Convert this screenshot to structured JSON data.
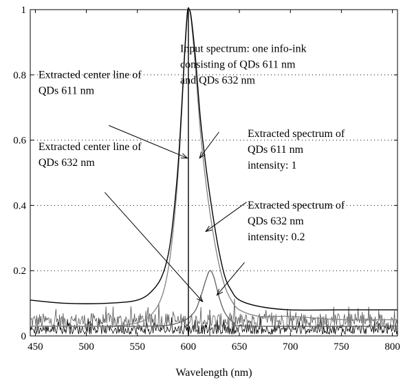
{
  "chart_data": {
    "type": "line",
    "title": "",
    "xlabel": "Wavelength (nm)",
    "ylabel": "",
    "xlim": [
      445,
      805
    ],
    "ylim": [
      0,
      1
    ],
    "grid": "dotted horizontal",
    "x_ticks": [
      {
        "value": 450,
        "label": "450"
      },
      {
        "value": 500,
        "label": "500"
      },
      {
        "value": 550,
        "label": "550"
      },
      {
        "value": 600,
        "label": "600"
      },
      {
        "value": 650,
        "label": "650"
      },
      {
        "value": 700,
        "label": "700"
      },
      {
        "value": 750,
        "label": "750"
      },
      {
        "value": 800,
        "label": "800"
      }
    ],
    "y_ticks": [
      {
        "value": 0,
        "label": "0"
      },
      {
        "value": 0.2,
        "label": "0.2"
      },
      {
        "value": 0.4,
        "label": "0.4"
      },
      {
        "value": 0.6,
        "label": "0.6"
      },
      {
        "value": 0.8,
        "label": "0.8"
      },
      {
        "value": 1,
        "label": "1"
      }
    ],
    "series": [
      {
        "color": "#000000",
        "points": [
          [
            445,
            0.11
          ],
          [
            480,
            0.1
          ],
          [
            520,
            0.1
          ],
          [
            550,
            0.11
          ],
          [
            565,
            0.14
          ],
          [
            575,
            0.19
          ],
          [
            582,
            0.28
          ],
          [
            588,
            0.45
          ],
          [
            592,
            0.62
          ],
          [
            596,
            0.85
          ],
          [
            599,
            0.99
          ],
          [
            601,
            1.0
          ],
          [
            603,
            0.97
          ],
          [
            607,
            0.85
          ],
          [
            612,
            0.66
          ],
          [
            618,
            0.5
          ],
          [
            624,
            0.37
          ],
          [
            630,
            0.26
          ],
          [
            636,
            0.18
          ],
          [
            642,
            0.14
          ],
          [
            650,
            0.11
          ],
          [
            670,
            0.09
          ],
          [
            700,
            0.08
          ],
          [
            750,
            0.08
          ],
          [
            805,
            0.08
          ]
        ]
      },
      {
        "color": "#888888",
        "points": [
          [
            445,
            0.03
          ],
          [
            480,
            0.03
          ],
          [
            520,
            0.03
          ],
          [
            550,
            0.04
          ],
          [
            565,
            0.07
          ],
          [
            575,
            0.13
          ],
          [
            582,
            0.24
          ],
          [
            588,
            0.42
          ],
          [
            592,
            0.6
          ],
          [
            596,
            0.84
          ],
          [
            599,
            0.98
          ],
          [
            601,
            1.0
          ],
          [
            603,
            0.96
          ],
          [
            607,
            0.82
          ],
          [
            612,
            0.62
          ],
          [
            618,
            0.45
          ],
          [
            624,
            0.32
          ],
          [
            630,
            0.22
          ],
          [
            636,
            0.15
          ],
          [
            642,
            0.11
          ],
          [
            650,
            0.08
          ],
          [
            670,
            0.06
          ],
          [
            700,
            0.06
          ],
          [
            750,
            0.05
          ],
          [
            805,
            0.05
          ]
        ]
      },
      {
        "color": "#666666",
        "points": [
          [
            445,
            0.03
          ],
          [
            560,
            0.03
          ],
          [
            590,
            0.04
          ],
          [
            605,
            0.07
          ],
          [
            612,
            0.12
          ],
          [
            617,
            0.17
          ],
          [
            621,
            0.2
          ],
          [
            625,
            0.18
          ],
          [
            630,
            0.12
          ],
          [
            636,
            0.07
          ],
          [
            645,
            0.04
          ],
          [
            660,
            0.03
          ],
          [
            805,
            0.03
          ]
        ]
      }
    ],
    "noise_series": [
      {
        "color": "#555555",
        "x_range": [
          445,
          805
        ],
        "base": 0.02,
        "amplitude": 0.05
      },
      {
        "color": "#000000",
        "x_range": [
          445,
          805
        ],
        "base": 0.005,
        "amplitude": 0.03
      }
    ],
    "center_lines": [
      {
        "x": 600,
        "y_top": 0.998,
        "color": "#000000"
      },
      {
        "x": 621,
        "y_top": 0.08,
        "color": "#555555"
      }
    ],
    "annotations": [
      {
        "lines": [
          "Extracted center line of",
          "QDs 611 nm"
        ],
        "text_x": 453,
        "text_y": 0.79,
        "arrow_from": [
          522,
          0.645
        ],
        "arrow_to": [
          599,
          0.545
        ]
      },
      {
        "lines": [
          "Input spectrum: one info-ink",
          "consisting of QDs 611 nm",
          "and QDs 632 nm"
        ],
        "text_x": 592,
        "text_y": 0.87,
        "arrow_from": [
          630,
          0.625
        ],
        "arrow_to": [
          611,
          0.545
        ]
      },
      {
        "lines": [
          "Extracted spectrum of",
          "QDs 611 nm",
          "intensity: 1"
        ],
        "text_x": 658,
        "text_y": 0.61,
        "arrow_from": [
          657,
          0.41
        ],
        "arrow_to": [
          617,
          0.32
        ]
      },
      {
        "lines": [
          "Extracted center line of",
          "QDs 632 nm"
        ],
        "text_x": 453,
        "text_y": 0.57,
        "arrow_from": [
          518,
          0.44
        ],
        "arrow_to": [
          614,
          0.105
        ]
      },
      {
        "lines": [
          "Extracted spectrum of",
          "QDs 632 nm",
          "intensity: 0.2"
        ],
        "text_x": 658,
        "text_y": 0.39,
        "arrow_from": [
          655,
          0.225
        ],
        "arrow_to": [
          628,
          0.125
        ]
      }
    ]
  }
}
